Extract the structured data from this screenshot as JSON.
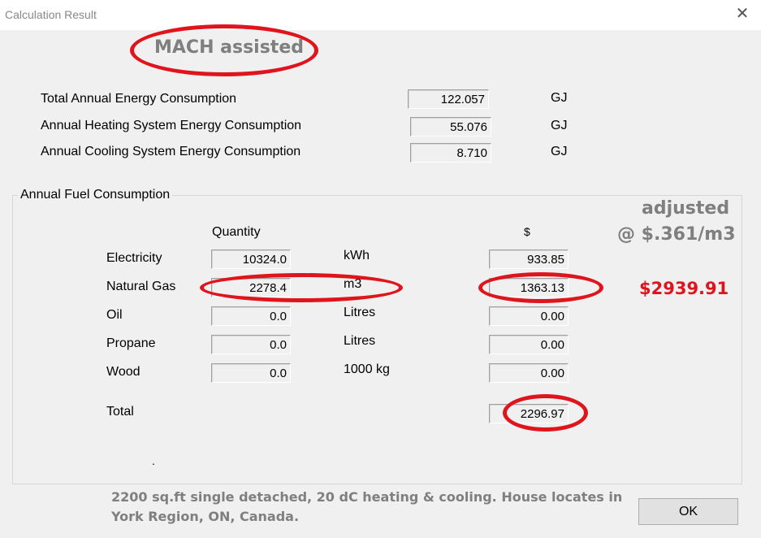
{
  "window": {
    "title": "Calculation Result",
    "close_icon": "close-icon"
  },
  "annotations": {
    "mach": "MACH assisted",
    "adjusted_line1": "adjusted",
    "adjusted_line2": "@ $.361/m3",
    "adjusted_total": "$2939.91",
    "footnote_line1": "2200 sq.ft single detached, 20 dC heating & cooling. House locates in",
    "footnote_line2": "York Region, ON, Canada.",
    "annotation_color": "#e0141c"
  },
  "energy": [
    {
      "label": "Total Annual Energy Consumption",
      "value": "122.057",
      "unit": "GJ"
    },
    {
      "label": "Annual Heating System Energy Consumption",
      "value": "55.076",
      "unit": "GJ"
    },
    {
      "label": "Annual Cooling System Energy Consumption",
      "value": "8.710",
      "unit": "GJ"
    }
  ],
  "fuel": {
    "group_title": "Annual Fuel Consumption",
    "quantity_header": "Quantity",
    "cost_header": "$",
    "rows": [
      {
        "label": "Electricity",
        "quantity": "10324.0",
        "unit": "kWh",
        "cost": "933.85"
      },
      {
        "label": "Natural Gas",
        "quantity": "2278.4",
        "unit": "m3",
        "cost": "1363.13"
      },
      {
        "label": "Oil",
        "quantity": "0.0",
        "unit": "Litres",
        "cost": "0.00"
      },
      {
        "label": "Propane",
        "quantity": "0.0",
        "unit": "Litres",
        "cost": "0.00"
      },
      {
        "label": "Wood",
        "quantity": "0.0",
        "unit": "1000 kg",
        "cost": "0.00"
      }
    ],
    "total_label": "Total",
    "total_value": "2296.97",
    "dot": "."
  },
  "buttons": {
    "ok": "OK"
  }
}
